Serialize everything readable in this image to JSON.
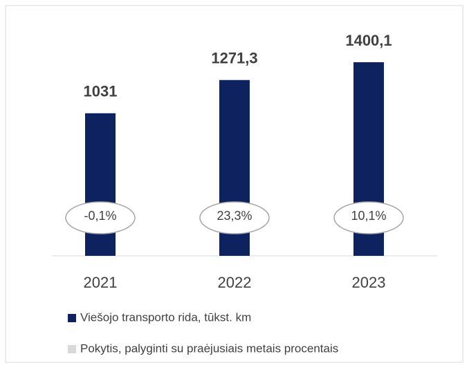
{
  "chart_data": {
    "type": "bar",
    "categories": [
      "2021",
      "2022",
      "2023"
    ],
    "series": [
      {
        "name": "Viešojo transporto rida, tūkst. km",
        "color": "#0e2260",
        "values": [
          1031,
          1271.3,
          1400.1
        ],
        "value_labels": [
          "1031",
          "1271,3",
          "1400,1"
        ]
      },
      {
        "name": "Pokytis, palyginti su praėjusiais metais procentais",
        "color": "#d9d9d9",
        "values": [
          -0.1,
          23.3,
          10.1
        ],
        "value_labels": [
          "-0,1%",
          "23,3%",
          "10,1%"
        ]
      }
    ],
    "ylim": [
      0,
      1600
    ]
  }
}
